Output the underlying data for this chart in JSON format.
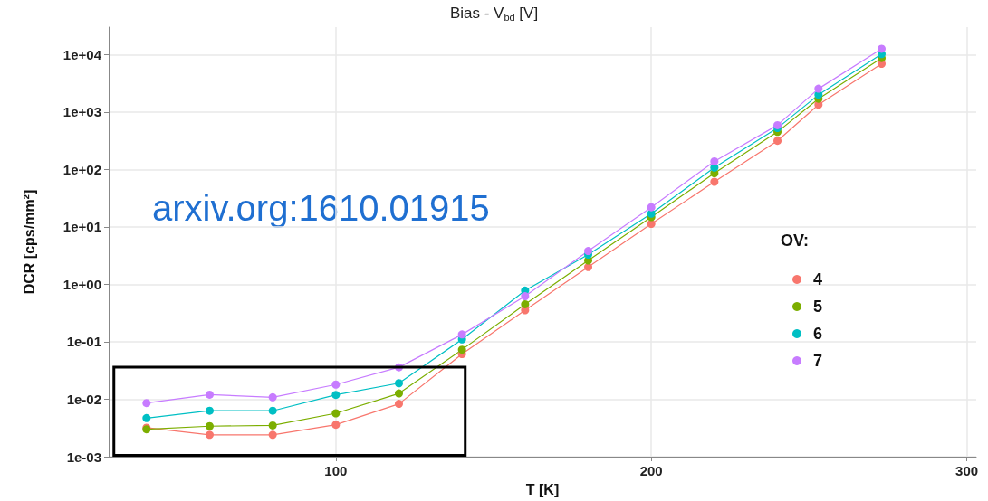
{
  "chart_data": {
    "type": "line",
    "title": "Bias - V$_{bd}$ [V]",
    "xlabel": "T [K]",
    "ylabel": "DCR [cps/mm²]",
    "legend_title": "OV:",
    "annotations": [
      "arxiv.org:1610.01915"
    ],
    "x": [
      40,
      60,
      80,
      100,
      120,
      140,
      160,
      180,
      200,
      220,
      240,
      253,
      273
    ],
    "series": [
      {
        "name": "4",
        "color": "#f8766d",
        "values": [
          0.0032,
          0.0024,
          0.0024,
          0.0036,
          0.0083,
          0.061,
          0.355,
          2.0,
          11.3,
          61,
          315,
          1340,
          6900
        ]
      },
      {
        "name": "5",
        "color": "#7cae00",
        "values": [
          0.003,
          0.0034,
          0.0035,
          0.0057,
          0.0126,
          0.073,
          0.45,
          2.6,
          14.8,
          86,
          450,
          1700,
          8700
        ]
      },
      {
        "name": "6",
        "color": "#00bfc4",
        "values": [
          0.0047,
          0.0063,
          0.0063,
          0.0119,
          0.019,
          0.11,
          0.78,
          3.3,
          17,
          108,
          525,
          1990,
          10200
        ]
      },
      {
        "name": "7",
        "color": "#c77cff",
        "values": [
          0.0086,
          0.012,
          0.0108,
          0.018,
          0.036,
          0.134,
          0.62,
          3.8,
          22,
          138,
          590,
          2540,
          12600
        ]
      }
    ],
    "xlim": [
      28,
      303
    ],
    "xticks": [
      100,
      200,
      300
    ],
    "ylim": [
      0.001,
      30000
    ],
    "yticks": [
      {
        "value": 0.001,
        "label": "1e-03"
      },
      {
        "value": 0.01,
        "label": "1e-02"
      },
      {
        "value": 0.1,
        "label": "1e-01"
      },
      {
        "value": 1,
        "label": "1e+00"
      },
      {
        "value": 10,
        "label": "1e+01"
      },
      {
        "value": 100,
        "label": "1e+02"
      },
      {
        "value": 1000,
        "label": "1e+03"
      },
      {
        "value": 10000,
        "label": "1e+04"
      }
    ],
    "log": "y",
    "grid": true,
    "legend": "right",
    "marker": "circle",
    "line_style": "solid"
  }
}
